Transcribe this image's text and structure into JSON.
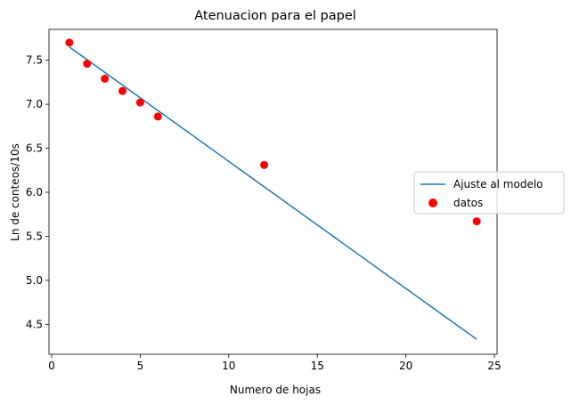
{
  "chart_data": {
    "type": "scatter",
    "title": "Atenuacion para el papel",
    "xlabel": "Numero de hojas",
    "ylabel": "Ln de conteos/10s",
    "xlim": [
      -0.15,
      25.15
    ],
    "ylim": [
      4.16,
      7.85
    ],
    "xticks": [
      0,
      5,
      10,
      15,
      20,
      25
    ],
    "xtick_labels": [
      "0",
      "5",
      "10",
      "15",
      "20",
      "25"
    ],
    "yticks": [
      4.5,
      5.0,
      5.5,
      6.0,
      6.5,
      7.0,
      7.5
    ],
    "ytick_labels": [
      "4.5",
      "5.0",
      "5.5",
      "6.0",
      "6.5",
      "7.0",
      "7.5"
    ],
    "grid": false,
    "legend_position": "right",
    "series": [
      {
        "name": "Ajuste al modelo",
        "kind": "line",
        "color": "#1f77b4",
        "x": [
          1,
          24
        ],
        "y": [
          7.65,
          4.33
        ]
      },
      {
        "name": "datos",
        "kind": "scatter",
        "color": "#ff0000",
        "x": [
          1,
          2,
          3,
          4,
          5,
          6,
          12,
          24
        ],
        "y": [
          7.7,
          7.46,
          7.29,
          7.15,
          7.02,
          6.86,
          6.31,
          5.67
        ]
      }
    ]
  }
}
